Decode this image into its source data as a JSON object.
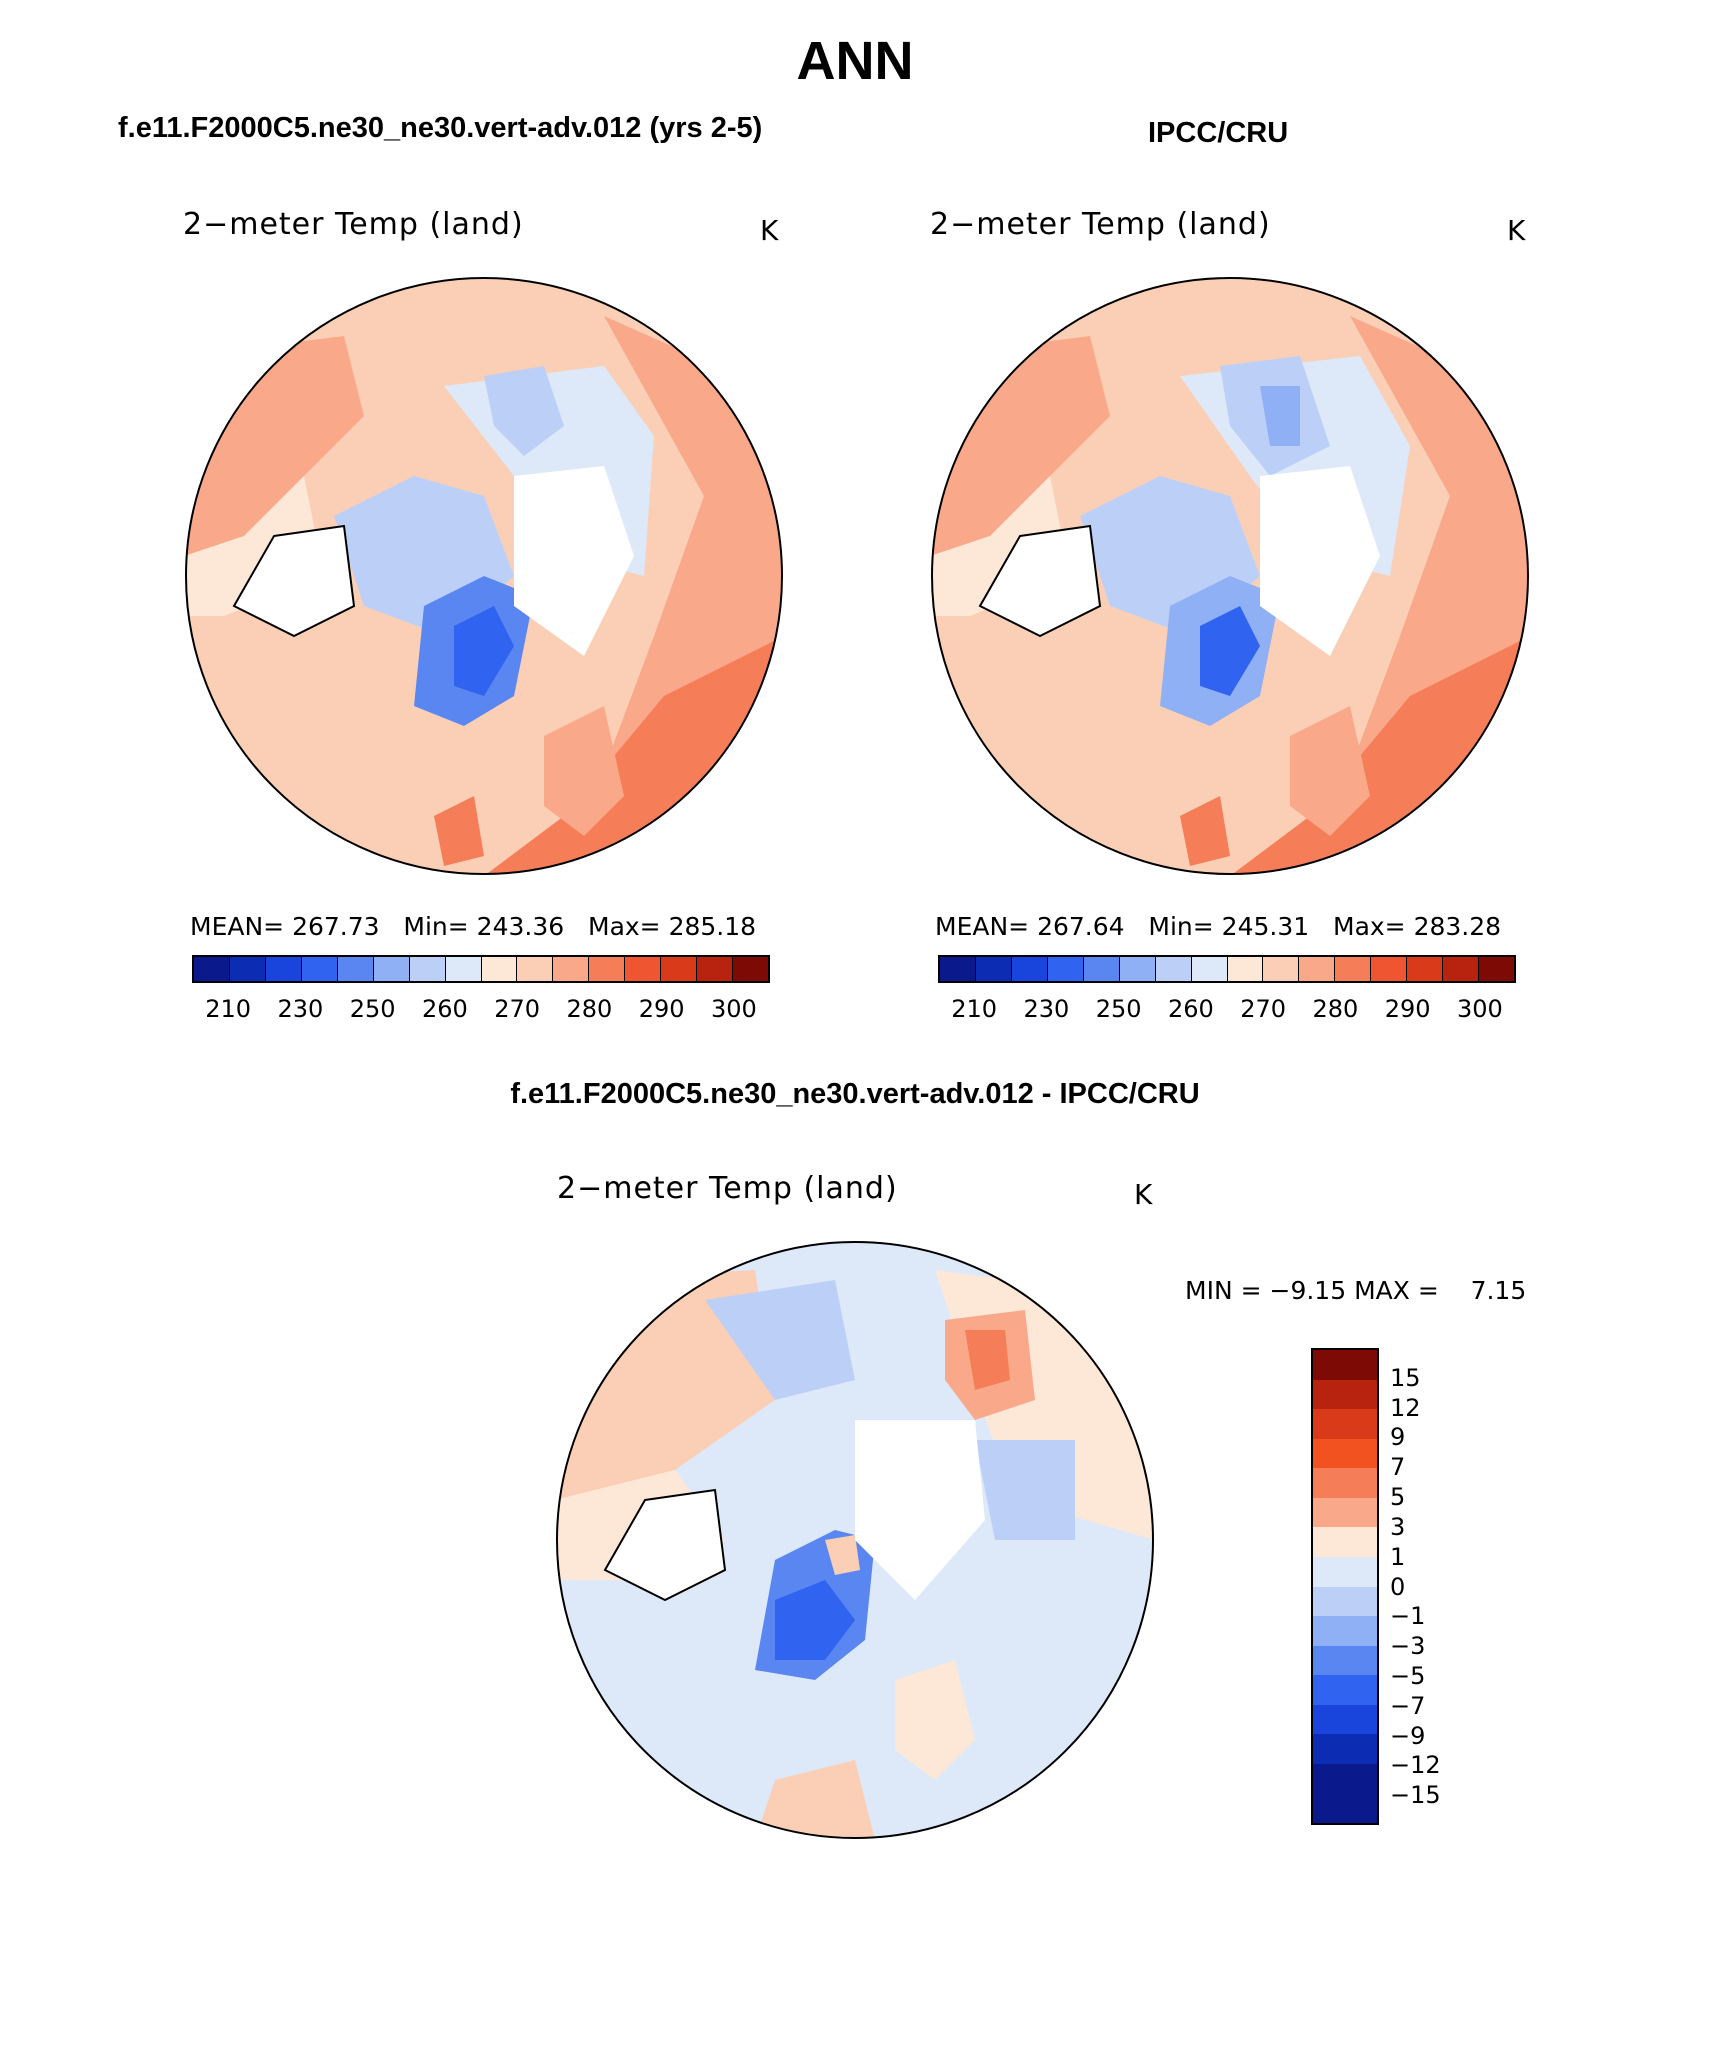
{
  "page_title": "ANN",
  "panels": [
    {
      "header": "f.e11.F2000C5.ne30_ne30.vert-adv.012 (yrs 2-5)",
      "title": "2−meter Temp (land)",
      "units": "K",
      "stats": {
        "mean_label": "MEAN=",
        "mean": "267.73",
        "min_label": "Min=",
        "min": "243.36",
        "max_label": "Max=",
        "max": "285.18"
      },
      "colorbar_ticks": [
        "210",
        "230",
        "250",
        "260",
        "270",
        "280",
        "290",
        "300"
      ]
    },
    {
      "header": "IPCC/CRU",
      "title": "2−meter Temp (land)",
      "units": "K",
      "stats": {
        "mean_label": "MEAN=",
        "mean": "267.64",
        "min_label": "Min=",
        "min": "245.31",
        "max_label": "Max=",
        "max": "283.28"
      },
      "colorbar_ticks": [
        "210",
        "230",
        "250",
        "260",
        "270",
        "280",
        "290",
        "300"
      ]
    }
  ],
  "difference": {
    "header": "f.e11.F2000C5.ne30_ne30.vert-adv.012 - IPCC/CRU",
    "title": "2−meter Temp (land)",
    "units": "K",
    "min_label": "MIN =",
    "min": "−9.15",
    "max_label": "MAX =",
    "max": "7.15",
    "colorbar_ticks": [
      "15",
      "12",
      "9",
      "7",
      "5",
      "3",
      "1",
      "0",
      "−1",
      "−3",
      "−5",
      "−7",
      "−9",
      "−12",
      "−15"
    ]
  },
  "colors": {
    "abs_scale": [
      "#0a1a8c",
      "#0d2cb4",
      "#1a45dc",
      "#2f63f0",
      "#5a86f2",
      "#8fb0f5",
      "#bcd0f7",
      "#dde9f9",
      "#fde8d8",
      "#fbcfb5",
      "#f9a98a",
      "#f57d58",
      "#ef5530",
      "#d93a1a",
      "#b8230f",
      "#7d0a05"
    ],
    "diff_scale": [
      "#7d0a05",
      "#b8230f",
      "#d93a1a",
      "#f2521f",
      "#f57d58",
      "#f9a98a",
      "#fde8d8",
      "#dde9f9",
      "#bcd0f7",
      "#8fb0f5",
      "#5a86f2",
      "#2f63f0",
      "#1a45dc",
      "#0d2cb4",
      "#0a1a8c"
    ]
  }
}
